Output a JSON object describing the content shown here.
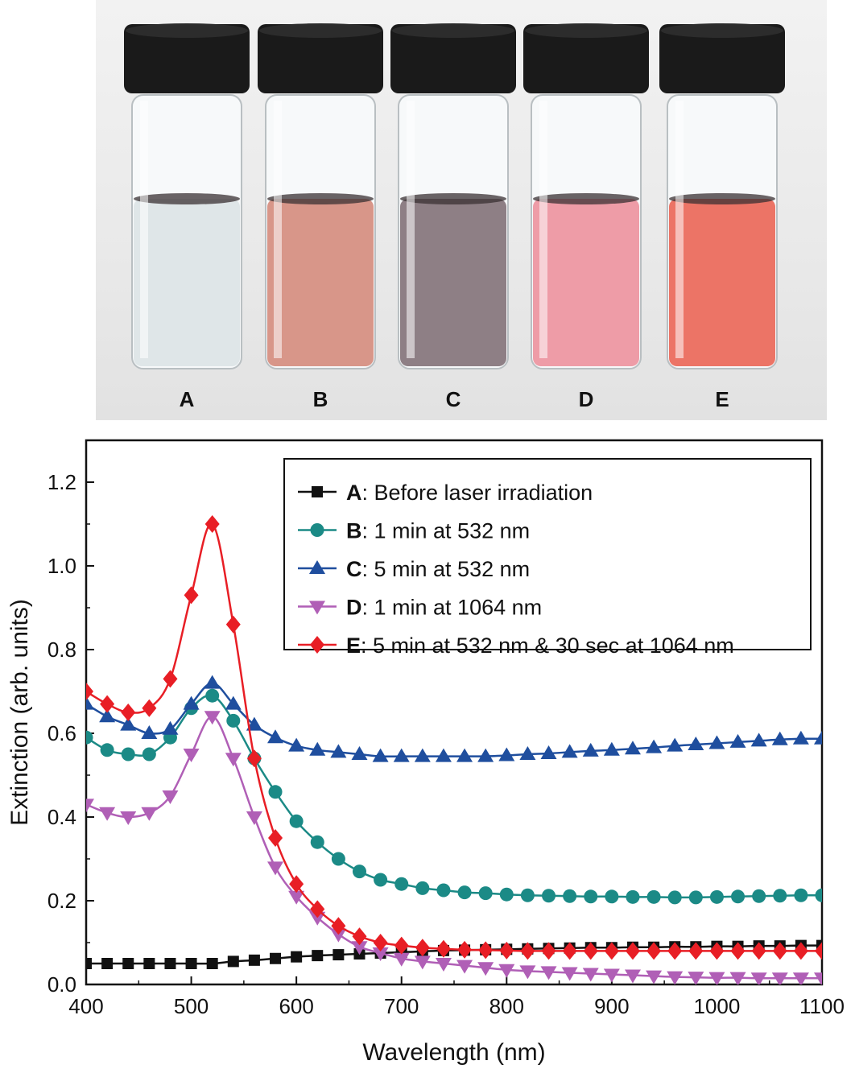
{
  "photo": {
    "vials": [
      {
        "label": "A",
        "liquid": "#dfe6e8"
      },
      {
        "label": "B",
        "liquid": "#d89689"
      },
      {
        "label": "C",
        "liquid": "#8e7f85"
      },
      {
        "label": "D",
        "liquid": "#ee9ca7"
      },
      {
        "label": "E",
        "liquid": "#ec7466"
      }
    ]
  },
  "chart_data": {
    "type": "line",
    "xlabel": "Wavelength (nm)",
    "ylabel": "Extinction (arb. units)",
    "xlim": [
      400,
      1100
    ],
    "ylim": [
      0,
      1.3
    ],
    "xticks": [
      "400",
      "500",
      "600",
      "700",
      "800",
      "900",
      "1000",
      "1100"
    ],
    "yticks": [
      "0.0",
      "0.2",
      "0.4",
      "0.6",
      "0.8",
      "1.0",
      "1.2"
    ],
    "legend_position": "top-right",
    "x": [
      400,
      420,
      440,
      460,
      480,
      500,
      520,
      540,
      560,
      580,
      600,
      620,
      640,
      660,
      680,
      700,
      720,
      740,
      760,
      780,
      800,
      820,
      840,
      860,
      880,
      900,
      920,
      940,
      960,
      980,
      1000,
      1020,
      1040,
      1060,
      1080,
      1100
    ],
    "series": [
      {
        "name_bold": "A",
        "name_rest": ": Before laser irradiation",
        "color": "#111111",
        "marker": "square",
        "values": [
          0.05,
          0.05,
          0.05,
          0.05,
          0.05,
          0.05,
          0.05,
          0.055,
          0.058,
          0.062,
          0.066,
          0.069,
          0.071,
          0.073,
          0.075,
          0.077,
          0.079,
          0.081,
          0.082,
          0.083,
          0.084,
          0.085,
          0.086,
          0.087,
          0.088,
          0.088,
          0.089,
          0.089,
          0.09,
          0.09,
          0.091,
          0.091,
          0.092,
          0.092,
          0.093,
          0.093
        ]
      },
      {
        "name_bold": "B",
        "name_rest": ": 1 min at 532 nm",
        "color": "#1b8a86",
        "marker": "circle",
        "values": [
          0.59,
          0.56,
          0.55,
          0.55,
          0.59,
          0.66,
          0.69,
          0.63,
          0.54,
          0.46,
          0.39,
          0.34,
          0.3,
          0.27,
          0.25,
          0.24,
          0.23,
          0.225,
          0.22,
          0.218,
          0.215,
          0.213,
          0.212,
          0.211,
          0.21,
          0.21,
          0.209,
          0.209,
          0.208,
          0.208,
          0.209,
          0.21,
          0.211,
          0.212,
          0.213,
          0.213
        ]
      },
      {
        "name_bold": "C",
        "name_rest": ": 5 min at 532 nm",
        "color": "#1f4e9e",
        "marker": "triangle-up",
        "values": [
          0.67,
          0.64,
          0.62,
          0.6,
          0.61,
          0.67,
          0.72,
          0.67,
          0.62,
          0.59,
          0.57,
          0.56,
          0.555,
          0.55,
          0.545,
          0.545,
          0.545,
          0.545,
          0.545,
          0.545,
          0.547,
          0.55,
          0.552,
          0.555,
          0.558,
          0.56,
          0.563,
          0.566,
          0.57,
          0.573,
          0.576,
          0.579,
          0.582,
          0.585,
          0.587,
          0.587
        ]
      },
      {
        "name_bold": "D",
        "name_rest": ": 1 min at 1064 nm",
        "color": "#b05fb6",
        "marker": "triangle-down",
        "values": [
          0.43,
          0.41,
          0.4,
          0.41,
          0.45,
          0.55,
          0.64,
          0.54,
          0.4,
          0.28,
          0.21,
          0.16,
          0.12,
          0.09,
          0.075,
          0.062,
          0.055,
          0.05,
          0.045,
          0.04,
          0.035,
          0.032,
          0.03,
          0.028,
          0.026,
          0.024,
          0.022,
          0.02,
          0.018,
          0.017,
          0.016,
          0.016,
          0.015,
          0.015,
          0.015,
          0.015
        ]
      },
      {
        "name_bold": "E",
        "name_rest": ": 5 min at 532 nm & 30 sec at 1064 nm",
        "color": "#e81e25",
        "marker": "diamond",
        "values": [
          0.7,
          0.67,
          0.65,
          0.66,
          0.73,
          0.93,
          1.1,
          0.86,
          0.54,
          0.35,
          0.24,
          0.18,
          0.14,
          0.115,
          0.1,
          0.093,
          0.088,
          0.085,
          0.083,
          0.082,
          0.081,
          0.08,
          0.08,
          0.08,
          0.08,
          0.08,
          0.08,
          0.08,
          0.08,
          0.08,
          0.08,
          0.08,
          0.08,
          0.08,
          0.08,
          0.08
        ]
      }
    ]
  }
}
